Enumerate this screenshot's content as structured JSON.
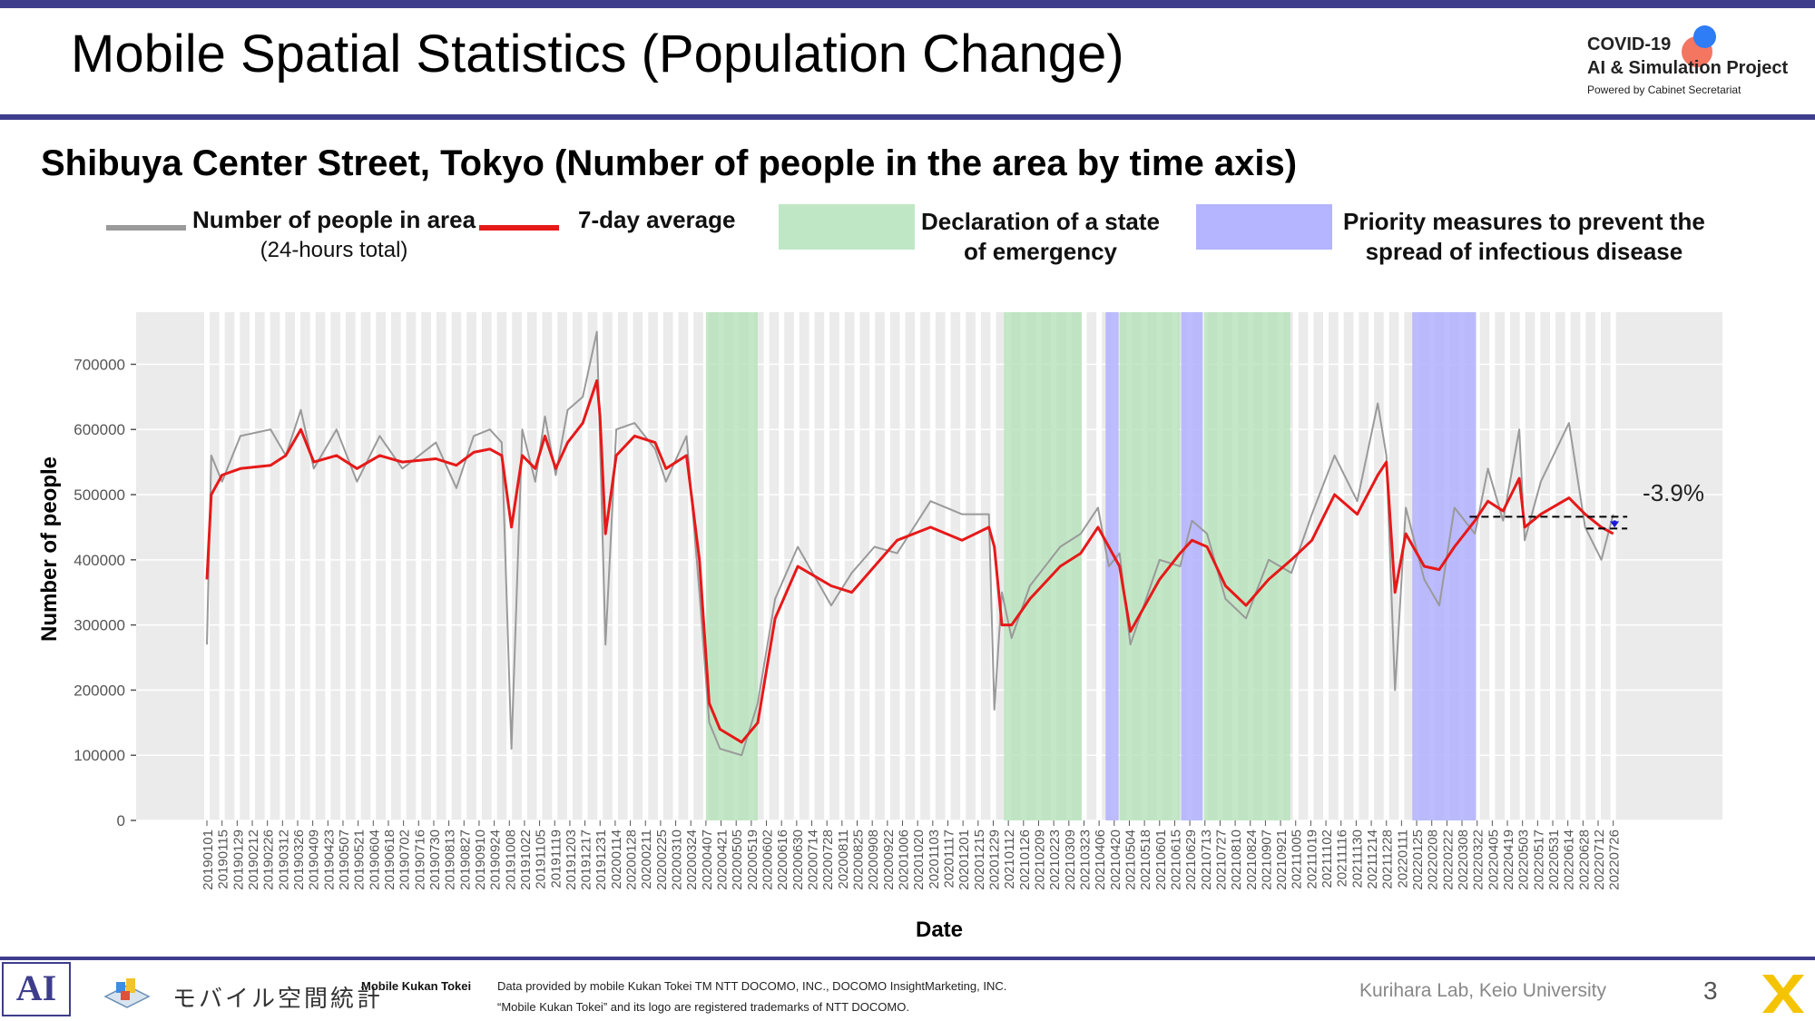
{
  "header": {
    "title": "Mobile Spatial Statistics (Population Change)",
    "logo": {
      "line1": "COVID-19",
      "line2": "AI & Simulation Project",
      "line3": "Powered by Cabinet Secretariat"
    }
  },
  "colors": {
    "accent": "#3e3d8c",
    "series_raw": "#9a9a9a",
    "series_avg": "#e61919",
    "emergency": "#b5e2b9",
    "priority": "#b0b0ff",
    "panel": "#ebebeb"
  },
  "legend": {
    "raw_label": "Number of people in area",
    "raw_sub": "(24-hours total)",
    "avg_label": "7-day average",
    "emergency_line1": "Declaration of a state",
    "emergency_line2": "of emergency",
    "priority_line1": "Priority measures to prevent the",
    "priority_line2": "spread of infectious disease"
  },
  "chart_data": {
    "type": "line",
    "title": "Shibuya Center Street, Tokyo (Number of people in the area by time axis)",
    "xlabel": "Date",
    "ylabel": "Number of people",
    "ylim": [
      0,
      780000
    ],
    "yticks": [
      "0",
      "100000",
      "200000",
      "300000",
      "400000",
      "500000",
      "600000",
      "700000"
    ],
    "ytick_values": [
      0,
      100000,
      200000,
      300000,
      400000,
      500000,
      600000,
      700000
    ],
    "x_start": "20190101",
    "x_end": "20220802",
    "x_tick_labels": [
      "20190101",
      "20190115",
      "20190129",
      "20190212",
      "20190226",
      "20190312",
      "20190326",
      "20190409",
      "20190423",
      "20190507",
      "20190521",
      "20190604",
      "20190618",
      "20190702",
      "20190716",
      "20190730",
      "20190813",
      "20190827",
      "20190910",
      "20190924",
      "20191008",
      "20191022",
      "20191105",
      "20191119",
      "20191203",
      "20191217",
      "20191231",
      "20200114",
      "20200128",
      "20200211",
      "20200225",
      "20200310",
      "20200324",
      "20200407",
      "20200421",
      "20200505",
      "20200519",
      "20200602",
      "20200616",
      "20200630",
      "20200714",
      "20200728",
      "20200811",
      "20200825",
      "20200908",
      "20200922",
      "20201006",
      "20201020",
      "20201103",
      "20201117",
      "20201201",
      "20201215",
      "20201229",
      "20210112",
      "20210126",
      "20210209",
      "20210223",
      "20210309",
      "20210323",
      "20210406",
      "20210420",
      "20210504",
      "20210518",
      "20210601",
      "20210615",
      "20210629",
      "20210713",
      "20210727",
      "20210810",
      "20210824",
      "20210907",
      "20210921",
      "20211005",
      "20211019",
      "20211102",
      "20211116",
      "20211130",
      "20211214",
      "20211228",
      "20220111",
      "20220125",
      "20220208",
      "20220222",
      "20220308",
      "20220322",
      "20220405",
      "20220419",
      "20220503",
      "20220517",
      "20220531",
      "20220614",
      "20220628",
      "20220712",
      "20220726"
    ],
    "grid": true,
    "legend_position": "top",
    "emergency_periods": [
      [
        "20200407",
        "20200525"
      ],
      [
        "20210108",
        "20210321"
      ],
      [
        "20210425",
        "20210620"
      ],
      [
        "20210712",
        "20210930"
      ]
    ],
    "priority_periods": [
      [
        "20210412",
        "20210424"
      ],
      [
        "20210621",
        "20210711"
      ],
      [
        "20220121",
        "20220321"
      ]
    ],
    "series": [
      {
        "name": "7-day average",
        "points": [
          [
            "20190101",
            370000
          ],
          [
            "20190105",
            500000
          ],
          [
            "20190115",
            530000
          ],
          [
            "20190201",
            540000
          ],
          [
            "20190301",
            545000
          ],
          [
            "20190315",
            560000
          ],
          [
            "20190329",
            600000
          ],
          [
            "20190410",
            550000
          ],
          [
            "20190501",
            560000
          ],
          [
            "20190520",
            540000
          ],
          [
            "20190610",
            560000
          ],
          [
            "20190701",
            550000
          ],
          [
            "20190801",
            555000
          ],
          [
            "20190820",
            545000
          ],
          [
            "20190905",
            565000
          ],
          [
            "20190920",
            570000
          ],
          [
            "20191001",
            560000
          ],
          [
            "20191010",
            450000
          ],
          [
            "20191020",
            560000
          ],
          [
            "20191101",
            540000
          ],
          [
            "20191110",
            590000
          ],
          [
            "20191120",
            540000
          ],
          [
            "20191201",
            580000
          ],
          [
            "20191215",
            610000
          ],
          [
            "20191228",
            675000
          ],
          [
            "20191231",
            620000
          ],
          [
            "20200105",
            440000
          ],
          [
            "20200115",
            560000
          ],
          [
            "20200201",
            590000
          ],
          [
            "20200220",
            580000
          ],
          [
            "20200301",
            540000
          ],
          [
            "20200320",
            560000
          ],
          [
            "20200401",
            400000
          ],
          [
            "20200410",
            180000
          ],
          [
            "20200420",
            140000
          ],
          [
            "20200510",
            120000
          ],
          [
            "20200525",
            150000
          ],
          [
            "20200610",
            310000
          ],
          [
            "20200701",
            390000
          ],
          [
            "20200801",
            360000
          ],
          [
            "20200820",
            350000
          ],
          [
            "20200910",
            390000
          ],
          [
            "20201001",
            430000
          ],
          [
            "20201101",
            450000
          ],
          [
            "20201130",
            430000
          ],
          [
            "20201225",
            450000
          ],
          [
            "20201230",
            420000
          ],
          [
            "20210106",
            300000
          ],
          [
            "20210115",
            300000
          ],
          [
            "20210201",
            340000
          ],
          [
            "20210301",
            390000
          ],
          [
            "20210320",
            410000
          ],
          [
            "20210405",
            450000
          ],
          [
            "20210415",
            420000
          ],
          [
            "20210425",
            390000
          ],
          [
            "20210505",
            290000
          ],
          [
            "20210601",
            370000
          ],
          [
            "20210620",
            410000
          ],
          [
            "20210701",
            430000
          ],
          [
            "20210715",
            420000
          ],
          [
            "20210801",
            360000
          ],
          [
            "20210820",
            330000
          ],
          [
            "20210910",
            370000
          ],
          [
            "20211001",
            400000
          ],
          [
            "20211020",
            430000
          ],
          [
            "20211110",
            500000
          ],
          [
            "20211201",
            470000
          ],
          [
            "20211220",
            530000
          ],
          [
            "20211228",
            550000
          ],
          [
            "20220105",
            350000
          ],
          [
            "20220115",
            440000
          ],
          [
            "20220201",
            390000
          ],
          [
            "20220215",
            385000
          ],
          [
            "20220301",
            420000
          ],
          [
            "20220320",
            460000
          ],
          [
            "20220401",
            490000
          ],
          [
            "20220415",
            475000
          ],
          [
            "20220430",
            525000
          ],
          [
            "20220505",
            450000
          ],
          [
            "20220520",
            470000
          ],
          [
            "20220615",
            495000
          ],
          [
            "20220630",
            470000
          ],
          [
            "20220715",
            450000
          ],
          [
            "20220726",
            440000
          ]
        ]
      },
      {
        "name": "Number of people in area",
        "points": [
          [
            "20190101",
            270000
          ],
          [
            "20190105",
            560000
          ],
          [
            "20190115",
            520000
          ],
          [
            "20190201",
            590000
          ],
          [
            "20190301",
            600000
          ],
          [
            "20190315",
            560000
          ],
          [
            "20190329",
            630000
          ],
          [
            "20190410",
            540000
          ],
          [
            "20190501",
            600000
          ],
          [
            "20190520",
            520000
          ],
          [
            "20190610",
            590000
          ],
          [
            "20190701",
            540000
          ],
          [
            "20190801",
            580000
          ],
          [
            "20190820",
            510000
          ],
          [
            "20190905",
            590000
          ],
          [
            "20190920",
            600000
          ],
          [
            "20191001",
            580000
          ],
          [
            "20191010",
            110000
          ],
          [
            "20191020",
            600000
          ],
          [
            "20191101",
            520000
          ],
          [
            "20191110",
            620000
          ],
          [
            "20191120",
            530000
          ],
          [
            "20191201",
            630000
          ],
          [
            "20191215",
            650000
          ],
          [
            "20191228",
            750000
          ],
          [
            "20191231",
            580000
          ],
          [
            "20200105",
            270000
          ],
          [
            "20200115",
            600000
          ],
          [
            "20200201",
            610000
          ],
          [
            "20200220",
            570000
          ],
          [
            "20200301",
            520000
          ],
          [
            "20200320",
            590000
          ],
          [
            "20200401",
            350000
          ],
          [
            "20200410",
            150000
          ],
          [
            "20200420",
            110000
          ],
          [
            "20200510",
            100000
          ],
          [
            "20200525",
            180000
          ],
          [
            "20200610",
            340000
          ],
          [
            "20200701",
            420000
          ],
          [
            "20200801",
            330000
          ],
          [
            "20200820",
            380000
          ],
          [
            "20200910",
            420000
          ],
          [
            "20201001",
            410000
          ],
          [
            "20201101",
            490000
          ],
          [
            "20201130",
            470000
          ],
          [
            "20201225",
            470000
          ],
          [
            "20201230",
            170000
          ],
          [
            "20210106",
            350000
          ],
          [
            "20210115",
            280000
          ],
          [
            "20210201",
            360000
          ],
          [
            "20210301",
            420000
          ],
          [
            "20210320",
            440000
          ],
          [
            "20210405",
            480000
          ],
          [
            "20210415",
            390000
          ],
          [
            "20210425",
            410000
          ],
          [
            "20210505",
            270000
          ],
          [
            "20210601",
            400000
          ],
          [
            "20210620",
            390000
          ],
          [
            "20210701",
            460000
          ],
          [
            "20210715",
            440000
          ],
          [
            "20210801",
            340000
          ],
          [
            "20210820",
            310000
          ],
          [
            "20210910",
            400000
          ],
          [
            "20211001",
            380000
          ],
          [
            "20211020",
            470000
          ],
          [
            "20211110",
            560000
          ],
          [
            "20211201",
            490000
          ],
          [
            "20211220",
            640000
          ],
          [
            "20211228",
            560000
          ],
          [
            "20220105",
            200000
          ],
          [
            "20220115",
            480000
          ],
          [
            "20220201",
            370000
          ],
          [
            "20220215",
            330000
          ],
          [
            "20220301",
            480000
          ],
          [
            "20220320",
            440000
          ],
          [
            "20220401",
            540000
          ],
          [
            "20220415",
            460000
          ],
          [
            "20220430",
            600000
          ],
          [
            "20220505",
            430000
          ],
          [
            "20220520",
            520000
          ],
          [
            "20220615",
            610000
          ],
          [
            "20220630",
            450000
          ],
          [
            "20220715",
            400000
          ],
          [
            "20220726",
            470000
          ]
        ]
      }
    ],
    "comparison": {
      "label": "-3.9%",
      "upper": 466000,
      "lower": 448000,
      "from": "20220315",
      "to": "20220808"
    }
  },
  "footer": {
    "ai_logo": "AI",
    "mk_logo_text": "モバイル空間統計",
    "mk_name": "Mobile Kukan Tokei",
    "credit_line1": "Data provided by mobile Kukan Tokei TM NTT DOCOMO, INC., DOCOMO InsightMarketing, INC.",
    "credit_line2": "“Mobile Kukan Tokei” and its logo are registered trademarks of NTT DOCOMO.",
    "lab": "Kurihara Lab, Keio University",
    "page_number": "3"
  }
}
